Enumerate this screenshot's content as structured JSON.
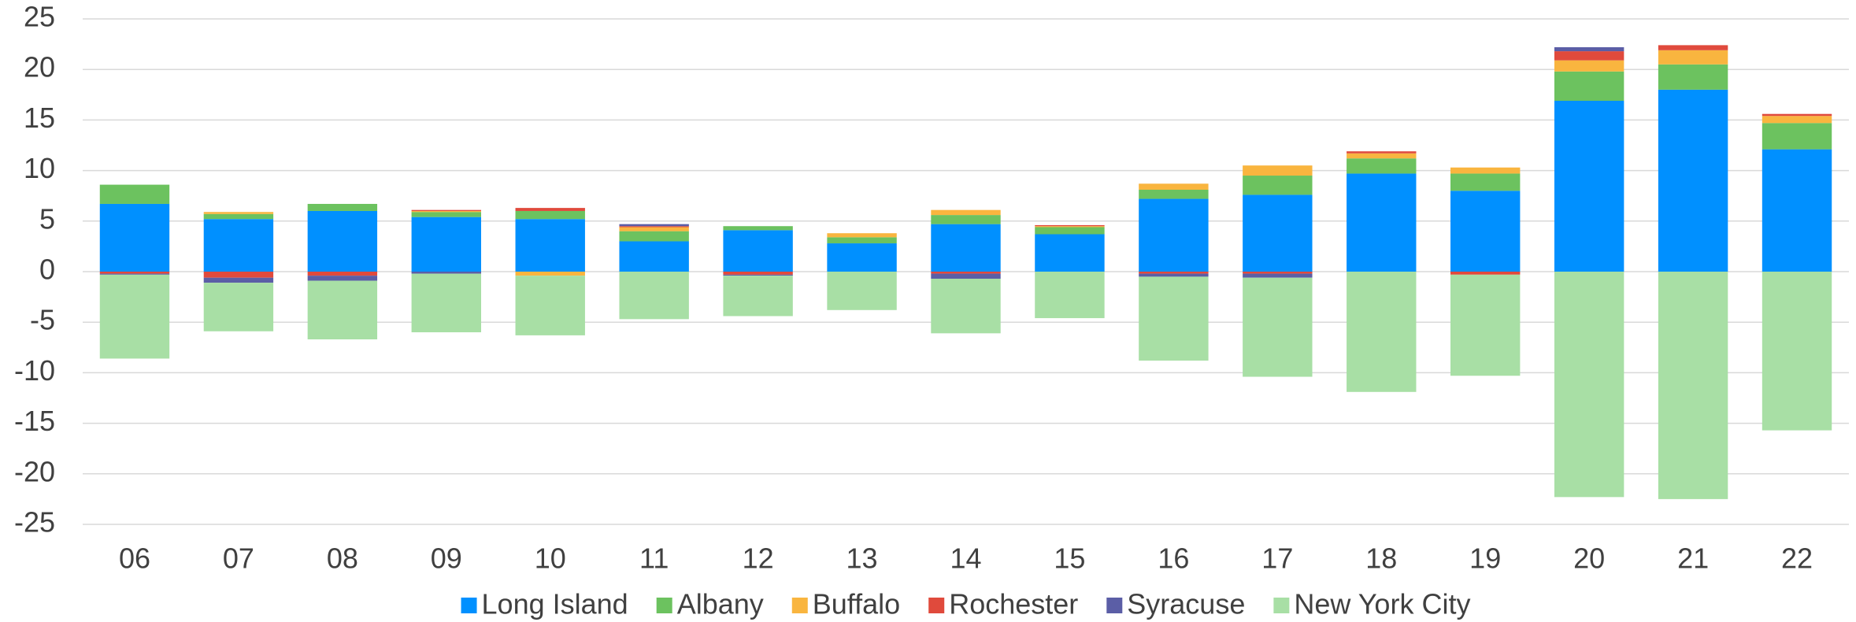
{
  "chart_data": {
    "type": "bar",
    "stacked": true,
    "categories": [
      "06",
      "07",
      "08",
      "09",
      "10",
      "11",
      "12",
      "13",
      "14",
      "15",
      "16",
      "17",
      "18",
      "19",
      "20",
      "21",
      "22"
    ],
    "series": [
      {
        "name": "Long Island",
        "color": "#0090ff",
        "values": [
          6.7,
          5.2,
          6.0,
          5.4,
          5.2,
          3.0,
          4.1,
          2.8,
          4.7,
          3.7,
          7.2,
          7.6,
          9.7,
          8.0,
          16.9,
          18.0,
          12.1
        ]
      },
      {
        "name": "Albany",
        "color": "#6cc25f",
        "values": [
          1.9,
          0.5,
          0.7,
          0.5,
          0.8,
          1.0,
          0.4,
          0.6,
          0.9,
          0.7,
          0.9,
          1.9,
          1.5,
          1.7,
          2.9,
          2.5,
          2.6
        ]
      },
      {
        "name": "Buffalo",
        "color": "#f9b53f",
        "values": [
          0,
          0.2,
          0,
          0.1,
          -0.4,
          0.4,
          0,
          0.4,
          0.5,
          0.1,
          0.6,
          1.0,
          0.5,
          0.6,
          1.1,
          1.4,
          0.7
        ]
      },
      {
        "name": "Rochester",
        "color": "#e04a3c",
        "values": [
          -0.2,
          -0.6,
          -0.4,
          0.1,
          0.3,
          0.1,
          -0.3,
          0,
          -0.2,
          0.1,
          -0.2,
          -0.2,
          0.2,
          -0.3,
          0.9,
          0.5,
          0.2
        ]
      },
      {
        "name": "Syracuse",
        "color": "#5b5ea6",
        "values": [
          -0.1,
          -0.5,
          -0.5,
          -0.2,
          0,
          0.2,
          -0.1,
          0,
          -0.5,
          0,
          -0.3,
          -0.4,
          0,
          0,
          0.4,
          0,
          0
        ]
      },
      {
        "name": "New York City",
        "color": "#a8dfa5",
        "values": [
          -8.3,
          -4.8,
          -5.8,
          -5.8,
          -5.9,
          -4.7,
          -4.0,
          -3.8,
          -5.4,
          -4.6,
          -8.3,
          -9.8,
          -11.9,
          -10.0,
          -22.3,
          -22.5,
          -15.7
        ]
      }
    ],
    "ylim": [
      -25,
      25
    ],
    "yticks": [
      -25,
      -20,
      -15,
      -10,
      -5,
      0,
      5,
      10,
      15,
      20,
      25
    ],
    "grid": true,
    "legend": "bottom"
  }
}
